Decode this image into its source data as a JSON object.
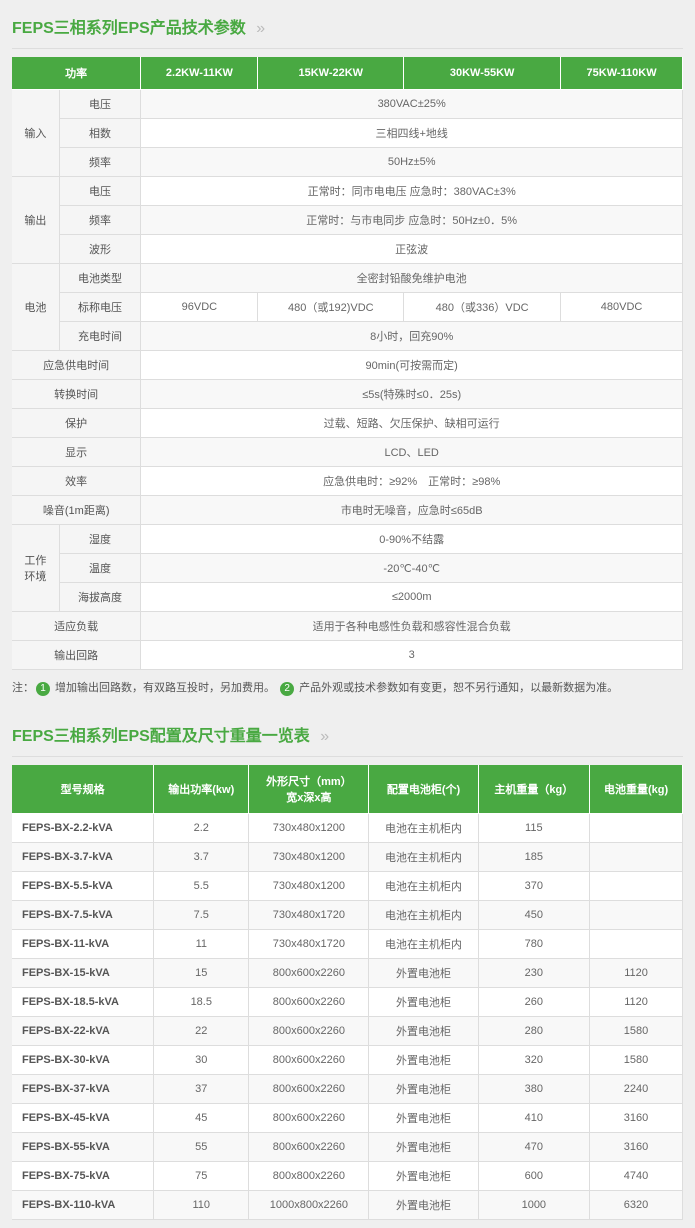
{
  "section1_title": "FEPS三相系列EPS产品技术参数",
  "chev": "»",
  "t1_headers": [
    "功率",
    "2.2KW-11KW",
    "15KW-22KW",
    "30KW-55KW",
    "75KW-110KW"
  ],
  "g_in": "输入",
  "g_out": "输出",
  "g_bat": "电池",
  "g_env": "工作\n环境",
  "r_in_v_l": "电压",
  "r_in_v": "380VAC±25%",
  "r_in_ph_l": "相数",
  "r_in_ph": "三相四线+地线",
  "r_in_fr_l": "频率",
  "r_in_fr": "50Hz±5%",
  "r_out_v_l": "电压",
  "r_out_v": "正常时：同市电电压 应急时：380VAC±3%",
  "r_out_fr_l": "频率",
  "r_out_fr": "正常时：与市电同步 应急时：50Hz±0．5%",
  "r_out_wv_l": "波形",
  "r_out_wv": "正弦波",
  "r_bat_ty_l": "电池类型",
  "r_bat_ty": "全密封铅酸免维护电池",
  "r_bat_nv_l": "标称电压",
  "r_bat_nv1": "96VDC",
  "r_bat_nv2": "480（或192)VDC",
  "r_bat_nv3": "480（或336）VDC",
  "r_bat_nv4": "480VDC",
  "r_bat_ch_l": "充电时间",
  "r_bat_ch": "8小时，回充90%",
  "r_emg_l": "应急供电时间",
  "r_emg": "90min(可按需而定)",
  "r_sw_l": "转换时间",
  "r_sw": "≤5s(特殊时≤0．25s)",
  "r_prot_l": "保护",
  "r_prot": "过载、短路、欠压保护、缺相可运行",
  "r_disp_l": "显示",
  "r_disp": "LCD、LED",
  "r_eff_l": "效率",
  "r_eff": "应急供电时：≥92%　正常时：≥98%",
  "r_noise_l": "噪音(1m距离)",
  "r_noise": "市电时无噪音，应急时≤65dB",
  "r_hum_l": "湿度",
  "r_hum": "0-90%不结露",
  "r_temp_l": "温度",
  "r_temp": "-20℃-40℃",
  "r_alt_l": "海拔高度",
  "r_alt": "≤2000m",
  "r_load_l": "适应负载",
  "r_load": "适用于各种电感性负载和感容性混合负载",
  "r_outc_l": "输出回路",
  "r_outc": "3",
  "note_prefix": "注：",
  "note1": " 增加输出回路数，有双路互投时，另加费用。",
  "note2": " 产品外观或技术参数如有变更，恕不另行通知，以最新数据为准。",
  "section2_title": "FEPS三相系列EPS配置及尺寸重量一览表",
  "t2_headers": [
    "型号规格",
    "输出功率(kw)",
    "外形尺寸（mm）\n宽x深x高",
    "配置电池柜(个)",
    "主机重量（kg）",
    "电池重量(kg)"
  ],
  "t2_rows": [
    [
      "FEPS-BX-2.2-kVA",
      "2.2",
      "730x480x1200",
      "电池在主机柜内",
      "115",
      ""
    ],
    [
      "FEPS-BX-3.7-kVA",
      "3.7",
      "730x480x1200",
      "电池在主机柜内",
      "185",
      ""
    ],
    [
      "FEPS-BX-5.5-kVA",
      "5.5",
      "730x480x1200",
      "电池在主机柜内",
      "370",
      ""
    ],
    [
      "FEPS-BX-7.5-kVA",
      "7.5",
      "730x480x1720",
      "电池在主机柜内",
      "450",
      ""
    ],
    [
      "FEPS-BX-11-kVA",
      "11",
      "730x480x1720",
      "电池在主机柜内",
      "780",
      ""
    ],
    [
      "FEPS-BX-15-kVA",
      "15",
      "800x600x2260",
      "外置电池柜",
      "230",
      "1120"
    ],
    [
      "FEPS-BX-18.5-kVA",
      "18.5",
      "800x600x2260",
      "外置电池柜",
      "260",
      "1120"
    ],
    [
      "FEPS-BX-22-kVA",
      "22",
      "800x600x2260",
      "外置电池柜",
      "280",
      "1580"
    ],
    [
      "FEPS-BX-30-kVA",
      "30",
      "800x600x2260",
      "外置电池柜",
      "320",
      "1580"
    ],
    [
      "FEPS-BX-37-kVA",
      "37",
      "800x600x2260",
      "外置电池柜",
      "380",
      "2240"
    ],
    [
      "FEPS-BX-45-kVA",
      "45",
      "800x600x2260",
      "外置电池柜",
      "410",
      "3160"
    ],
    [
      "FEPS-BX-55-kVA",
      "55",
      "800x600x2260",
      "外置电池柜",
      "470",
      "3160"
    ],
    [
      "FEPS-BX-75-kVA",
      "75",
      "800x800x2260",
      "外置电池柜",
      "600",
      "4740"
    ],
    [
      "FEPS-BX-110-kVA",
      "110",
      "1000x800x2260",
      "外置电池柜",
      "1000",
      "6320"
    ]
  ]
}
